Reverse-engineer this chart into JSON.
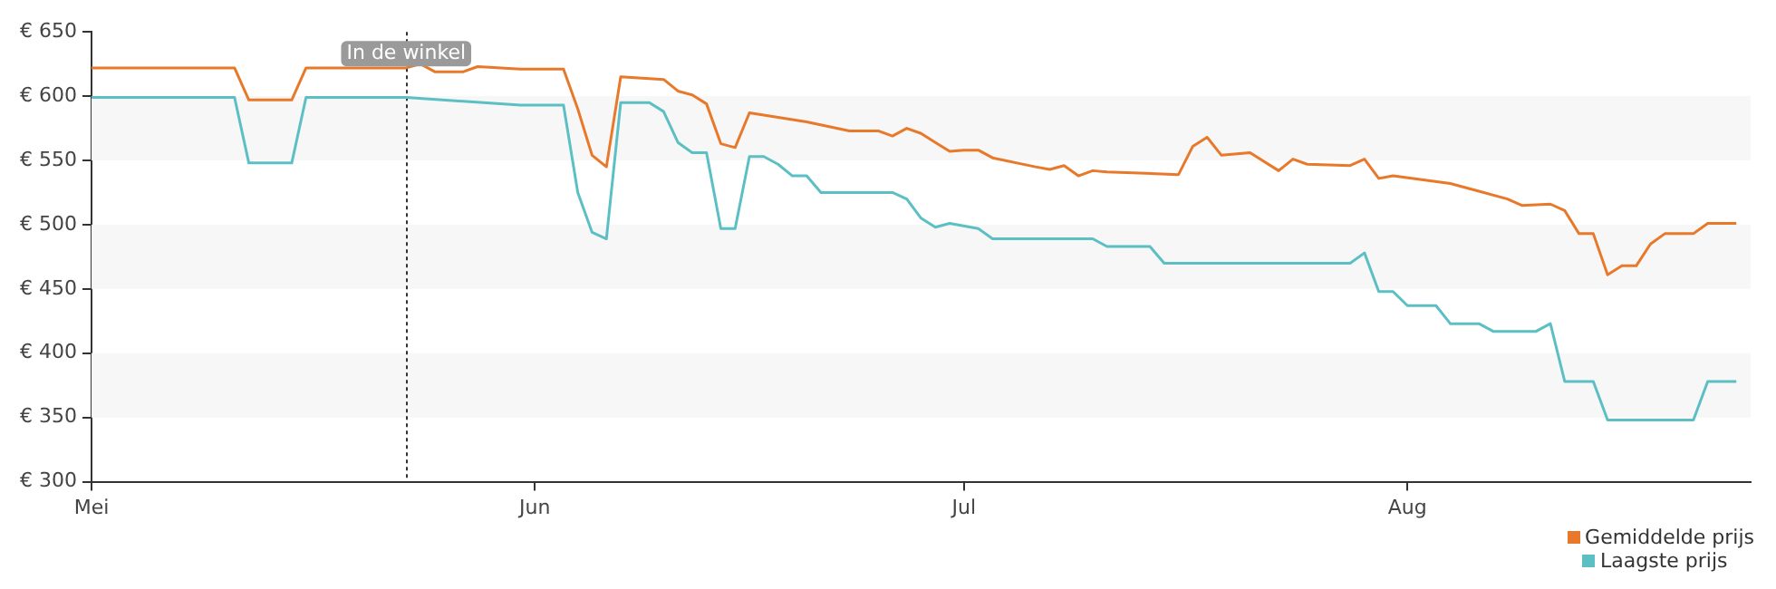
{
  "chart_data": {
    "type": "line",
    "xlim": [
      "--05-01",
      "--08-25"
    ],
    "xticks": [
      {
        "value": "--05-01",
        "label": "Mei"
      },
      {
        "value": "--06-01",
        "label": "Jun"
      },
      {
        "value": "--07-01",
        "label": "Jul"
      },
      {
        "value": "--08-01",
        "label": "Aug"
      }
    ],
    "ylim": [
      300,
      650
    ],
    "yticks": [
      {
        "value": 300,
        "label": "€ 300"
      },
      {
        "value": 350,
        "label": "€ 350"
      },
      {
        "value": 400,
        "label": "€ 400"
      },
      {
        "value": 450,
        "label": "€ 450"
      },
      {
        "value": 500,
        "label": "€ 500"
      },
      {
        "value": 550,
        "label": "€ 550"
      },
      {
        "value": 600,
        "label": "€ 600"
      },
      {
        "value": 650,
        "label": "€ 650"
      }
    ],
    "bands": [
      {
        "axis": "y",
        "from": 350,
        "to": 400,
        "color": "#f7f7f7"
      },
      {
        "axis": "y",
        "from": 450,
        "to": 500,
        "color": "#f7f7f7"
      },
      {
        "axis": "y",
        "from": 550,
        "to": 600,
        "color": "#f7f7f7"
      }
    ],
    "legend": "bottom right",
    "marker": "none",
    "line_style": "solid",
    "ref_lines": [
      {
        "axis": "x",
        "value": "--05-23",
        "label": "In de winkel",
        "color": "#333333",
        "line_style": "dotted"
      }
    ],
    "series": [
      {
        "name": "Gemiddelde prijs",
        "color": "#e8792b",
        "x": [
          "--05-01",
          "--05-11",
          "--05-12",
          "--05-15",
          "--05-16",
          "--05-23",
          "--05-24",
          "--05-25",
          "--05-27",
          "--05-28",
          "--05-31",
          "--06-03",
          "--06-04",
          "--06-05",
          "--06-06",
          "--06-07",
          "--06-10",
          "--06-11",
          "--06-12",
          "--06-13",
          "--06-14",
          "--06-15",
          "--06-16",
          "--06-20",
          "--06-23",
          "--06-25",
          "--06-26",
          "--06-27",
          "--06-28",
          "--06-29",
          "--06-30",
          "--07-01",
          "--07-02",
          "--07-03",
          "--07-06",
          "--07-07",
          "--07-08",
          "--07-09",
          "--07-10",
          "--07-11",
          "--07-16",
          "--07-17",
          "--07-18",
          "--07-19",
          "--07-21",
          "--07-23",
          "--07-24",
          "--07-25",
          "--07-28",
          "--07-29",
          "--07-30",
          "--07-31",
          "--08-04",
          "--08-06",
          "--08-08",
          "--08-09",
          "--08-11",
          "--08-12",
          "--08-13",
          "--08-14",
          "--08-15",
          "--08-16",
          "--08-17",
          "--08-18",
          "--08-19",
          "--08-21",
          "--08-22",
          "--08-24"
        ],
        "values": [
          622,
          622,
          597,
          597,
          622,
          622,
          625,
          619,
          619,
          623,
          621,
          621,
          590,
          554,
          545,
          615,
          613,
          604,
          601,
          594,
          563,
          560,
          587,
          580,
          573,
          573,
          569,
          575,
          571,
          564,
          557,
          558,
          558,
          552,
          545,
          543,
          546,
          538,
          542,
          541,
          539,
          561,
          568,
          554,
          556,
          542,
          551,
          547,
          546,
          551,
          536,
          538,
          532,
          526,
          520,
          515,
          516,
          511,
          493,
          493,
          461,
          468,
          468,
          485,
          493,
          493,
          501,
          501
        ]
      },
      {
        "name": "Laagste prijs",
        "color": "#5bbfc4",
        "x": [
          "--05-01",
          "--05-11",
          "--05-12",
          "--05-15",
          "--05-16",
          "--05-23",
          "--05-27",
          "--05-31",
          "--06-03",
          "--06-04",
          "--06-05",
          "--06-06",
          "--06-07",
          "--06-09",
          "--06-10",
          "--06-11",
          "--06-12",
          "--06-13",
          "--06-14",
          "--06-15",
          "--06-16",
          "--06-17",
          "--06-18",
          "--06-19",
          "--06-20",
          "--06-21",
          "--06-26",
          "--06-27",
          "--06-28",
          "--06-29",
          "--06-30",
          "--07-02",
          "--07-03",
          "--07-10",
          "--07-11",
          "--07-14",
          "--07-15",
          "--07-28",
          "--07-29",
          "--07-30",
          "--07-31",
          "--08-01",
          "--08-03",
          "--08-04",
          "--08-06",
          "--08-07",
          "--08-10",
          "--08-11",
          "--08-12",
          "--08-14",
          "--08-15",
          "--08-21",
          "--08-22",
          "--08-24"
        ],
        "values": [
          599,
          599,
          548,
          548,
          599,
          599,
          596,
          593,
          593,
          525,
          494,
          489,
          595,
          595,
          588,
          564,
          556,
          556,
          497,
          497,
          553,
          553,
          547,
          538,
          538,
          525,
          525,
          520,
          505,
          498,
          501,
          497,
          489,
          489,
          483,
          483,
          470,
          470,
          478,
          448,
          448,
          437,
          437,
          423,
          423,
          417,
          417,
          423,
          378,
          378,
          348,
          348,
          378,
          378
        ]
      }
    ]
  }
}
